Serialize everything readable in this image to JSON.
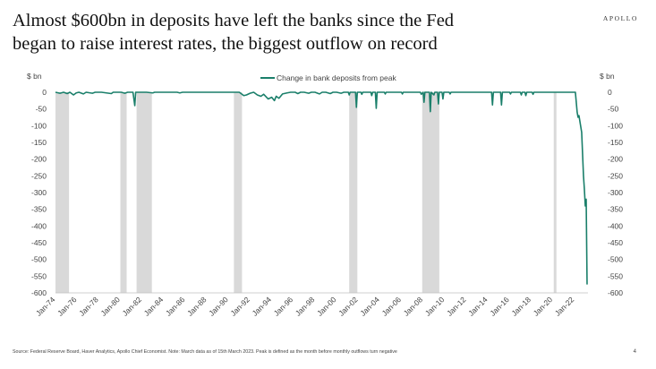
{
  "header": {
    "title_line1": "Almost $600bn in deposits have left the banks since the Fed",
    "title_line2": "began to raise interest rates, the biggest outflow on record",
    "brand": "APOLLO"
  },
  "footer": {
    "source": "Source: Federal Reserve Board, Haver Analytics, Apollo Chief Economist. Note: March data as of 15th March 2023. Peak is defined as the month before monthly outflows turn negative",
    "page_number": "4"
  },
  "colors": {
    "line": "#1a7f6a",
    "recession": "#d9d9d9",
    "axis_text": "#444444"
  },
  "chart_data": {
    "type": "line",
    "title": "Almost $600bn in deposits have left the banks since the Fed began to raise interest rates, the biggest outflow on record",
    "ylabel_left": "$ bn",
    "ylabel_right": "$ bn",
    "ylim": [
      -600,
      0
    ],
    "yticks": [
      0,
      -50,
      -100,
      -150,
      -200,
      -250,
      -300,
      -350,
      -400,
      -450,
      -500,
      -550,
      -600
    ],
    "xlim": [
      "1974-01",
      "2023-03"
    ],
    "xtick_labels": [
      "Jan-74",
      "Jan-76",
      "Jan-78",
      "Jan-80",
      "Jan-82",
      "Jan-84",
      "Jan-86",
      "Jan-88",
      "Jan-90",
      "Jan-92",
      "Jan-94",
      "Jan-96",
      "Jan-98",
      "Jan-00",
      "Jan-02",
      "Jan-04",
      "Jan-06",
      "Jan-08",
      "Jan-10",
      "Jan-12",
      "Jan-14",
      "Jan-16",
      "Jan-18",
      "Jan-20",
      "Jan-22"
    ],
    "legend_position": "top-center",
    "grid": false,
    "recessions": [
      [
        "1974-01",
        "1975-03"
      ],
      [
        "1980-01",
        "1980-07"
      ],
      [
        "1981-07",
        "1982-11"
      ],
      [
        "1990-07",
        "1991-03"
      ],
      [
        "2001-03",
        "2001-11"
      ],
      [
        "2007-12",
        "2009-06"
      ],
      [
        "2020-02",
        "2020-04"
      ]
    ],
    "series": [
      {
        "name": "Change in bank deposits from peak",
        "points": [
          [
            "1974-01",
            0
          ],
          [
            "1974-06",
            -3
          ],
          [
            "1974-10",
            0
          ],
          [
            "1975-02",
            -4
          ],
          [
            "1975-05",
            0
          ],
          [
            "1975-09",
            -8
          ],
          [
            "1975-12",
            -2
          ],
          [
            "1976-03",
            0
          ],
          [
            "1976-08",
            -5
          ],
          [
            "1976-11",
            0
          ],
          [
            "1977-06",
            -3
          ],
          [
            "1977-09",
            0
          ],
          [
            "1978-04",
            0
          ],
          [
            "1979-03",
            -4
          ],
          [
            "1979-05",
            0
          ],
          [
            "1980-02",
            0
          ],
          [
            "1980-06",
            -3
          ],
          [
            "1980-09",
            0
          ],
          [
            "1981-03",
            0
          ],
          [
            "1981-05",
            -40
          ],
          [
            "1981-06",
            0
          ],
          [
            "1982-06",
            0
          ],
          [
            "1983-01",
            -2
          ],
          [
            "1983-03",
            0
          ],
          [
            "1985-04",
            0
          ],
          [
            "1985-07",
            -2
          ],
          [
            "1985-10",
            0
          ],
          [
            "1988-01",
            0
          ],
          [
            "1990-04",
            0
          ],
          [
            "1991-01",
            0
          ],
          [
            "1991-06",
            -10
          ],
          [
            "1991-09",
            -8
          ],
          [
            "1992-01",
            -3
          ],
          [
            "1992-05",
            0
          ],
          [
            "1992-09",
            -8
          ],
          [
            "1993-01",
            -12
          ],
          [
            "1993-04",
            -6
          ],
          [
            "1993-09",
            -20
          ],
          [
            "1994-01",
            -15
          ],
          [
            "1994-04",
            -25
          ],
          [
            "1994-06",
            -12
          ],
          [
            "1994-09",
            -18
          ],
          [
            "1995-01",
            -5
          ],
          [
            "1995-06",
            -2
          ],
          [
            "1995-10",
            0
          ],
          [
            "1996-03",
            0
          ],
          [
            "1996-06",
            -4
          ],
          [
            "1996-09",
            0
          ],
          [
            "1997-01",
            0
          ],
          [
            "1997-06",
            -3
          ],
          [
            "1997-09",
            0
          ],
          [
            "1998-01",
            0
          ],
          [
            "1998-06",
            -5
          ],
          [
            "1998-09",
            0
          ],
          [
            "1999-01",
            0
          ],
          [
            "1999-06",
            -4
          ],
          [
            "1999-09",
            0
          ],
          [
            "2000-01",
            0
          ],
          [
            "2000-06",
            -3
          ],
          [
            "2000-09",
            0
          ],
          [
            "2001-02",
            0
          ],
          [
            "2001-03",
            -8
          ],
          [
            "2001-04",
            0
          ],
          [
            "2001-10",
            0
          ],
          [
            "2001-11",
            -45
          ],
          [
            "2001-12",
            0
          ],
          [
            "2002-04",
            0
          ],
          [
            "2002-05",
            -6
          ],
          [
            "2002-06",
            0
          ],
          [
            "2003-03",
            0
          ],
          [
            "2003-04",
            -10
          ],
          [
            "2003-05",
            0
          ],
          [
            "2003-08",
            0
          ],
          [
            "2003-09",
            -48
          ],
          [
            "2003-10",
            0
          ],
          [
            "2004-06",
            0
          ],
          [
            "2004-07",
            -5
          ],
          [
            "2004-08",
            0
          ],
          [
            "2006-01",
            0
          ],
          [
            "2006-02",
            -5
          ],
          [
            "2006-03",
            0
          ],
          [
            "2007-10",
            0
          ],
          [
            "2007-11",
            -6
          ],
          [
            "2008-01",
            0
          ],
          [
            "2008-02",
            -30
          ],
          [
            "2008-03",
            0
          ],
          [
            "2008-08",
            0
          ],
          [
            "2008-09",
            -58
          ],
          [
            "2008-10",
            0
          ],
          [
            "2009-01",
            -8
          ],
          [
            "2009-02",
            0
          ],
          [
            "2009-05",
            0
          ],
          [
            "2009-06",
            -35
          ],
          [
            "2009-07",
            0
          ],
          [
            "2009-10",
            0
          ],
          [
            "2009-11",
            -20
          ],
          [
            "2009-12",
            0
          ],
          [
            "2010-06",
            0
          ],
          [
            "2010-07",
            -5
          ],
          [
            "2010-08",
            0
          ],
          [
            "2014-05",
            0
          ],
          [
            "2014-06",
            -38
          ],
          [
            "2014-07",
            0
          ],
          [
            "2015-03",
            0
          ],
          [
            "2015-04",
            -38
          ],
          [
            "2015-05",
            0
          ],
          [
            "2016-01",
            0
          ],
          [
            "2016-02",
            -5
          ],
          [
            "2016-03",
            0
          ],
          [
            "2017-01",
            0
          ],
          [
            "2017-02",
            -8
          ],
          [
            "2017-03",
            0
          ],
          [
            "2017-06",
            0
          ],
          [
            "2017-07",
            -10
          ],
          [
            "2017-08",
            0
          ],
          [
            "2018-02",
            0
          ],
          [
            "2018-03",
            -6
          ],
          [
            "2018-04",
            0
          ],
          [
            "2021-12",
            0
          ],
          [
            "2022-02",
            0
          ],
          [
            "2022-04",
            -60
          ],
          [
            "2022-05",
            -75
          ],
          [
            "2022-06",
            -70
          ],
          [
            "2022-09",
            -120
          ],
          [
            "2022-11",
            -250
          ],
          [
            "2022-12",
            -290
          ],
          [
            "2023-01",
            -340
          ],
          [
            "2023-02",
            -320
          ],
          [
            "2023-03",
            -575
          ]
        ]
      }
    ]
  }
}
